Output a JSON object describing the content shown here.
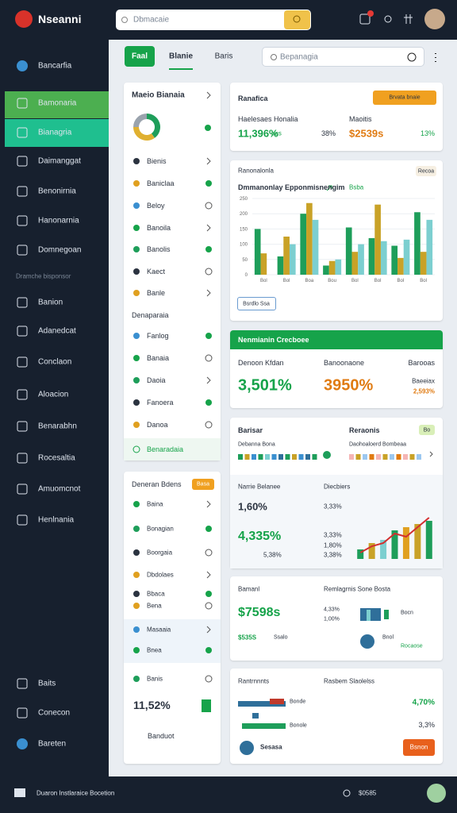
{
  "topbar": {
    "brand": "Nseanni",
    "search": "Dbmacaie"
  },
  "sidebar": {
    "items": [
      "Bancarfia",
      "Bamonaria",
      "Bianagria",
      "Daimanggat",
      "Benonirnia",
      "Hanonarnia",
      "Domnegoan"
    ],
    "section": "Dramche bisponsor",
    "items2": [
      "Banion",
      "Adanedcat",
      "Conclaon",
      "Aloacion",
      "Benarabhn",
      "Rocesaltia",
      "Amuomcnot",
      "Henlnania"
    ],
    "bottom": [
      "Baits",
      "Conecon",
      "Bareten"
    ]
  },
  "toolbar": {
    "button": "Faal",
    "tabs": [
      "Blanie",
      "Baris"
    ],
    "search": "Bepanagia"
  },
  "panel1": {
    "title": "Maeio Bianaia",
    "items": [
      "Bienis",
      "Baniclaa",
      "Beloy",
      "Banoila",
      "Banolis",
      "Kaect",
      "Banle"
    ],
    "section": "Denaparaia",
    "items2": [
      "Fanlog",
      "Banaia",
      "Daoia",
      "Fanoera",
      "Danoa"
    ],
    "footer": "Benaradaia"
  },
  "panel2": {
    "title": "Deneran Bdens",
    "badge": "Basa",
    "items": [
      "Baina",
      "Bonagian",
      "Boorgaia",
      "Dbdolaes",
      "Bbaca",
      "Bena",
      "Masaaia",
      "Bnea",
      "Banis"
    ],
    "value": "11,52%",
    "footer": "Banduot"
  },
  "card1": {
    "title": "Ranafica",
    "button": "Brvata bnaie",
    "label1": "Haelesaes Honalia",
    "label2": "Maoitis",
    "value1": "11,396%",
    "unit1": "bas",
    "value2": "38%",
    "value3": "$2539s",
    "value4": "13%"
  },
  "card2": {
    "label": "Ranonalonla",
    "badge": "Recoa",
    "button": "Bsrdlo Ssa"
  },
  "card3": {
    "header": "Nenmianin Crecboee",
    "labels": [
      "Denoon Kfdan",
      "Banoonaone",
      "Barooas"
    ],
    "values": [
      "3,501%",
      "3950%",
      "2,593%"
    ],
    "sub": "Baeeiax"
  },
  "card4": {
    "title": "Barisar",
    "badge": "Bo",
    "title2": "Reraonis",
    "sub1": "Debanna Bona",
    "sub2": "Daohoaloerd Bombeaa",
    "label1": "Narrie Belanee",
    "label2": "Diecbiers",
    "value1": "1,60%",
    "value2": "3,33%",
    "value3": "4,335%",
    "small": [
      "3,33%",
      "1,80%",
      "5,38%",
      "3,38%"
    ]
  },
  "card5": {
    "title": "Bamanl",
    "title2": "Remlagrnis Sone Bosta",
    "value": "$7598s",
    "labels": [
      "4,33%",
      "1,00%",
      "Bocn"
    ],
    "value2": "$535S",
    "unit2": "Ssalo",
    "label3": "Bnol",
    "label4": "Rocaose"
  },
  "card6": {
    "title": "Rantrnnnts",
    "title2": "Rasbem Slaolelss",
    "labels": [
      "Bonde",
      "Bonole"
    ],
    "value1": "4,70%",
    "value2": "3,3%",
    "label": "Sesasa",
    "button": "Bsnon"
  },
  "footer": {
    "text": "Duaron Instlaraice Bocetion",
    "value": "$0585"
  },
  "chart_data": [
    {
      "type": "bar",
      "title": "Dmmanonlay Epponmisnengim",
      "annotation": "Bsba",
      "categories": [
        "Bol",
        "Bol",
        "Boa",
        "Bou",
        "Bol",
        "Bol",
        "Bol",
        "Bol"
      ],
      "series": [
        {
          "color": "#1e9e5a",
          "values": [
            150,
            60,
            200,
            30,
            155,
            120,
            95,
            205
          ]
        },
        {
          "color": "#c9a227",
          "values": [
            70,
            125,
            235,
            45,
            75,
            230,
            55,
            75
          ]
        },
        {
          "color": "#7ccfd0",
          "values": [
            0,
            100,
            180,
            50,
            100,
            110,
            115,
            180
          ]
        }
      ],
      "ylim": [
        0,
        250
      ],
      "yticks": [
        0,
        50,
        100,
        150,
        200,
        250
      ],
      "grid": true
    },
    {
      "type": "pie",
      "values": [
        40,
        35,
        25
      ],
      "colors": [
        "#1e9e5a",
        "#e0b030",
        "#9aa3ad"
      ]
    },
    {
      "type": "bar",
      "series": [
        {
          "type": "bar",
          "colors": [
            "#1e9e5a",
            "#c9a227",
            "#7ccfd0",
            "#1e9e5a",
            "#e0a020",
            "#c9a227",
            "#1e9e5a"
          ],
          "values": [
            1.5,
            2.5,
            3,
            4.5,
            5,
            5.5,
            6
          ]
        },
        {
          "type": "line",
          "color": "#d32f2f",
          "values": [
            1,
            2,
            2.5,
            4,
            3.5,
            5,
            6.5
          ]
        }
      ],
      "ylim": [
        0,
        8
      ]
    }
  ]
}
